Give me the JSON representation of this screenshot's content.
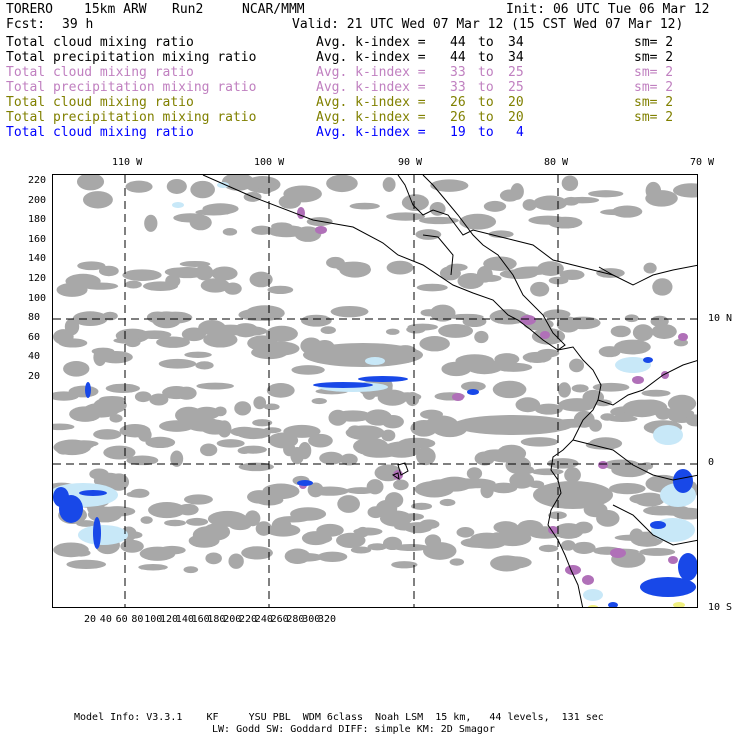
{
  "header": {
    "model": "TORERO",
    "resolution": "15km ARW",
    "run": "Run2",
    "org": "NCAR/MMM",
    "init": "Init: 06 UTC Tue 06 Mar 12",
    "fcst_label": "Fcst:",
    "fcst_value": "39 h",
    "valid": "Valid: 21 UTC Wed 07 Mar 12 (15 CST Wed 07 Mar 12)"
  },
  "legend": [
    {
      "field": "Total cloud mixing ratio",
      "avg": "Avg. k-index =",
      "from": "44",
      "to_word": "to",
      "to": "34",
      "sm": "sm= 2",
      "color": "#000000"
    },
    {
      "field": "Total precipitation mixing ratio",
      "avg": "Avg. k-index =",
      "from": "44",
      "to_word": "to",
      "to": "34",
      "sm": "sm= 2",
      "color": "#000000"
    },
    {
      "field": "Total cloud mixing ratio",
      "avg": "Avg. k-index =",
      "from": "33",
      "to_word": "to",
      "to": "25",
      "sm": "sm= 2",
      "color": "#c080c0"
    },
    {
      "field": "Total precipitation mixing ratio",
      "avg": "Avg. k-index =",
      "from": "33",
      "to_word": "to",
      "to": "25",
      "sm": "sm= 2",
      "color": "#c080c0"
    },
    {
      "field": "Total cloud mixing ratio",
      "avg": "Avg. k-index =",
      "from": "26",
      "to_word": "to",
      "to": "20",
      "sm": "sm= 2",
      "color": "#808000"
    },
    {
      "field": "Total precipitation mixing ratio",
      "avg": "Avg. k-index =",
      "from": "26",
      "to_word": "to",
      "to": "20",
      "sm": "sm= 2",
      "color": "#808000"
    },
    {
      "field": "Total cloud mixing ratio",
      "avg": "Avg. k-index =",
      "from": "19",
      "to_word": "to",
      "to": "4",
      "sm": "",
      "color": "#0000ff"
    }
  ],
  "map": {
    "lon_labels": [
      "110 W",
      "100 W",
      "90 W",
      "80 W",
      "70 W"
    ],
    "lat_labels": [
      "10 N",
      "0",
      "10 S"
    ],
    "y_ticks": [
      "220",
      "200",
      "180",
      "160",
      "140",
      "120",
      "100",
      "80",
      "60",
      "40",
      "20"
    ],
    "x_ticks": [
      "20",
      "40",
      "60",
      "80",
      "100",
      "120",
      "140",
      "160",
      "180",
      "200",
      "220",
      "240",
      "260",
      "280",
      "300",
      "320"
    ],
    "colors": {
      "gray": "#a8a8a8",
      "purple": "#b070b8",
      "lightblue": "#c8e8f8",
      "blue": "#1848e8",
      "yellow": "#f0f080",
      "coast": "#000000",
      "grid": "#000000"
    }
  },
  "footer": {
    "line1": "Model Info: V3.3.1    KF     YSU PBL  WDM 6class  Noah LSM  15 km,   44 levels,  131 sec",
    "line2": "LW: Godd SW: Goddard DIFF: simple KM: 2D Smagor"
  }
}
